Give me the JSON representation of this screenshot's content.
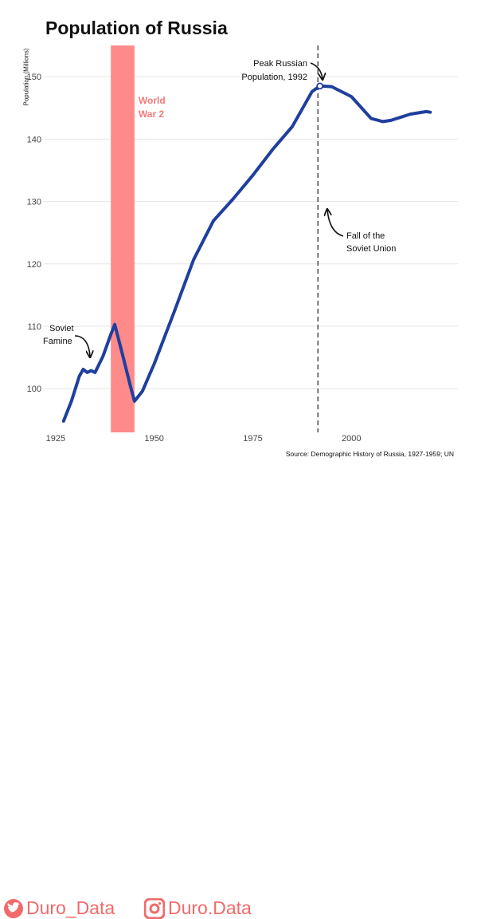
{
  "chart_data": {
    "type": "line",
    "title": "Population of Russia",
    "ylabel": "Population (Millions)",
    "xlabel": "",
    "xlim": [
      1922,
      2027
    ],
    "ylim": [
      93,
      155
    ],
    "x_ticks": [
      1925,
      1950,
      1975,
      2000
    ],
    "y_ticks": [
      100,
      110,
      120,
      130,
      140,
      150
    ],
    "grid": true,
    "series": [
      {
        "color": "#1f3f9f",
        "x": [
          1927,
          1929,
          1931,
          1932,
          1933,
          1934,
          1935,
          1937,
          1939,
          1940,
          1942,
          1944,
          1945,
          1946,
          1947,
          1950,
          1955,
          1960,
          1965,
          1970,
          1975,
          1980,
          1985,
          1990,
          1992,
          1995,
          2000,
          2005,
          2008,
          2010,
          2015,
          2019,
          2020
        ],
        "values": [
          94.8,
          98.0,
          102.0,
          103.1,
          102.6,
          102.9,
          102.6,
          105.2,
          108.7,
          110.3,
          105.4,
          100.3,
          98.0,
          98.8,
          99.6,
          104.0,
          112.2,
          120.7,
          126.9,
          130.4,
          134.2,
          138.3,
          142.0,
          147.6,
          148.5,
          148.4,
          146.8,
          143.3,
          142.8,
          143.0,
          144.0,
          144.4,
          144.3
        ]
      }
    ],
    "shaded_region": {
      "x_start": 1939,
      "x_end": 1945,
      "label_line1": "World",
      "label_line2": "War 2",
      "color": "#ff8a8a"
    },
    "vline": {
      "x": 1991.5,
      "style": "dashed"
    },
    "peak_marker": {
      "x": 1992,
      "y": 148.5
    },
    "annotations": [
      {
        "id": "famine",
        "line1": "Soviet",
        "line2": "Famine"
      },
      {
        "id": "peak",
        "line1": "Peak Russian",
        "line2": "Population, 1992"
      },
      {
        "id": "fall",
        "line1": "Fall of the",
        "line2": "Soviet Union"
      }
    ],
    "source": "Source: Demographic History of Russia, 1927-1959; UN"
  },
  "footer": {
    "twitter_handle": "Duro_Data",
    "instagram_handle": "Duro.Data",
    "brand_color": "#f26a6a",
    "twitter_icon": "twitter-bird-icon",
    "instagram_icon": "instagram-camera-icon"
  }
}
